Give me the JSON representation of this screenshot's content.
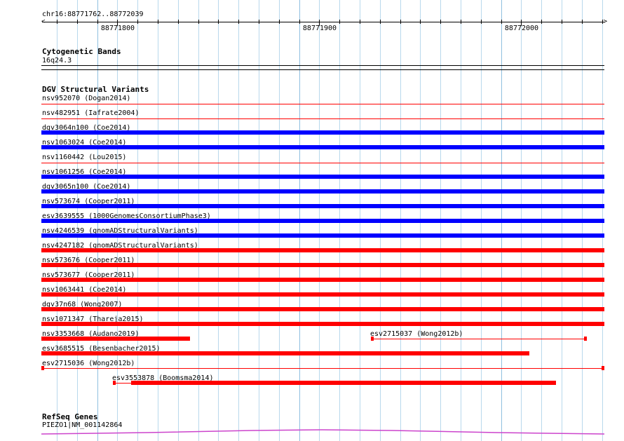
{
  "ruler": {
    "coords": "chr16:88771762..88772039",
    "tick_labels": [
      "88771800",
      "88771900",
      "88772000"
    ]
  },
  "cyto": {
    "title": "Cytogenetic Bands",
    "band": "16q24.3"
  },
  "dgv": {
    "title": "DGV Structural Variants",
    "colors": {
      "loss": "#ff0000",
      "gain": "#0000ff"
    },
    "features": [
      {
        "label": "nsv952070 (Dogan2014)",
        "color": "loss",
        "style": "thin"
      },
      {
        "label": "nsv482951 (Iafrate2004)",
        "color": "loss",
        "style": "thin"
      },
      {
        "label": "dgv3064n100 (Coe2014)",
        "color": "gain",
        "style": "thick"
      },
      {
        "label": "nsv1063024 (Coe2014)",
        "color": "gain",
        "style": "thick"
      },
      {
        "label": "nsv1160442 (Lou2015)",
        "color": "loss",
        "style": "thin"
      },
      {
        "label": "nsv1061256 (Coe2014)",
        "color": "gain",
        "style": "thick"
      },
      {
        "label": "dgv3065n100 (Coe2014)",
        "color": "gain",
        "style": "thick"
      },
      {
        "label": "nsv573674 (Cooper2011)",
        "color": "gain",
        "style": "thick"
      },
      {
        "label": "esv3639555 (1000GenomesConsortiumPhase3)",
        "color": "gain",
        "style": "thick"
      },
      {
        "label": "nsv4246539 (gnomADStructuralVariants)",
        "color": "gain",
        "style": "thick"
      },
      {
        "label": "nsv4247182 (gnomADStructuralVariants)",
        "color": "loss",
        "style": "thick"
      },
      {
        "label": "nsv573676 (Cooper2011)",
        "color": "loss",
        "style": "thick"
      },
      {
        "label": "nsv573677 (Cooper2011)",
        "color": "loss",
        "style": "thick"
      },
      {
        "label": "nsv1063441 (Coe2014)",
        "color": "loss",
        "style": "thick"
      },
      {
        "label": "dgv37n68 (Wong2007)",
        "color": "loss",
        "style": "thick"
      },
      {
        "label": "nsv1071347 (Thareja2015)",
        "color": "loss",
        "style": "thick"
      },
      {
        "label": "nsv3353668 (Audano2019)",
        "color": "loss",
        "style": "thick"
      },
      {
        "label": "esv2715037 (Wong2012b)",
        "color": "loss",
        "style": "capped"
      },
      {
        "label": "esv3685515 (Besenbacher2015)",
        "color": "loss",
        "style": "thick"
      },
      {
        "label": "esv2715036 (Wong2012b)",
        "color": "loss",
        "style": "capped"
      },
      {
        "label": "esv3553878 (Boomsma2014)",
        "color": "loss",
        "style": "gapped"
      }
    ]
  },
  "refseq": {
    "title": "RefSeq Genes",
    "gene": "PIEZO1|NM_001142864",
    "color": "#cc44cc"
  }
}
